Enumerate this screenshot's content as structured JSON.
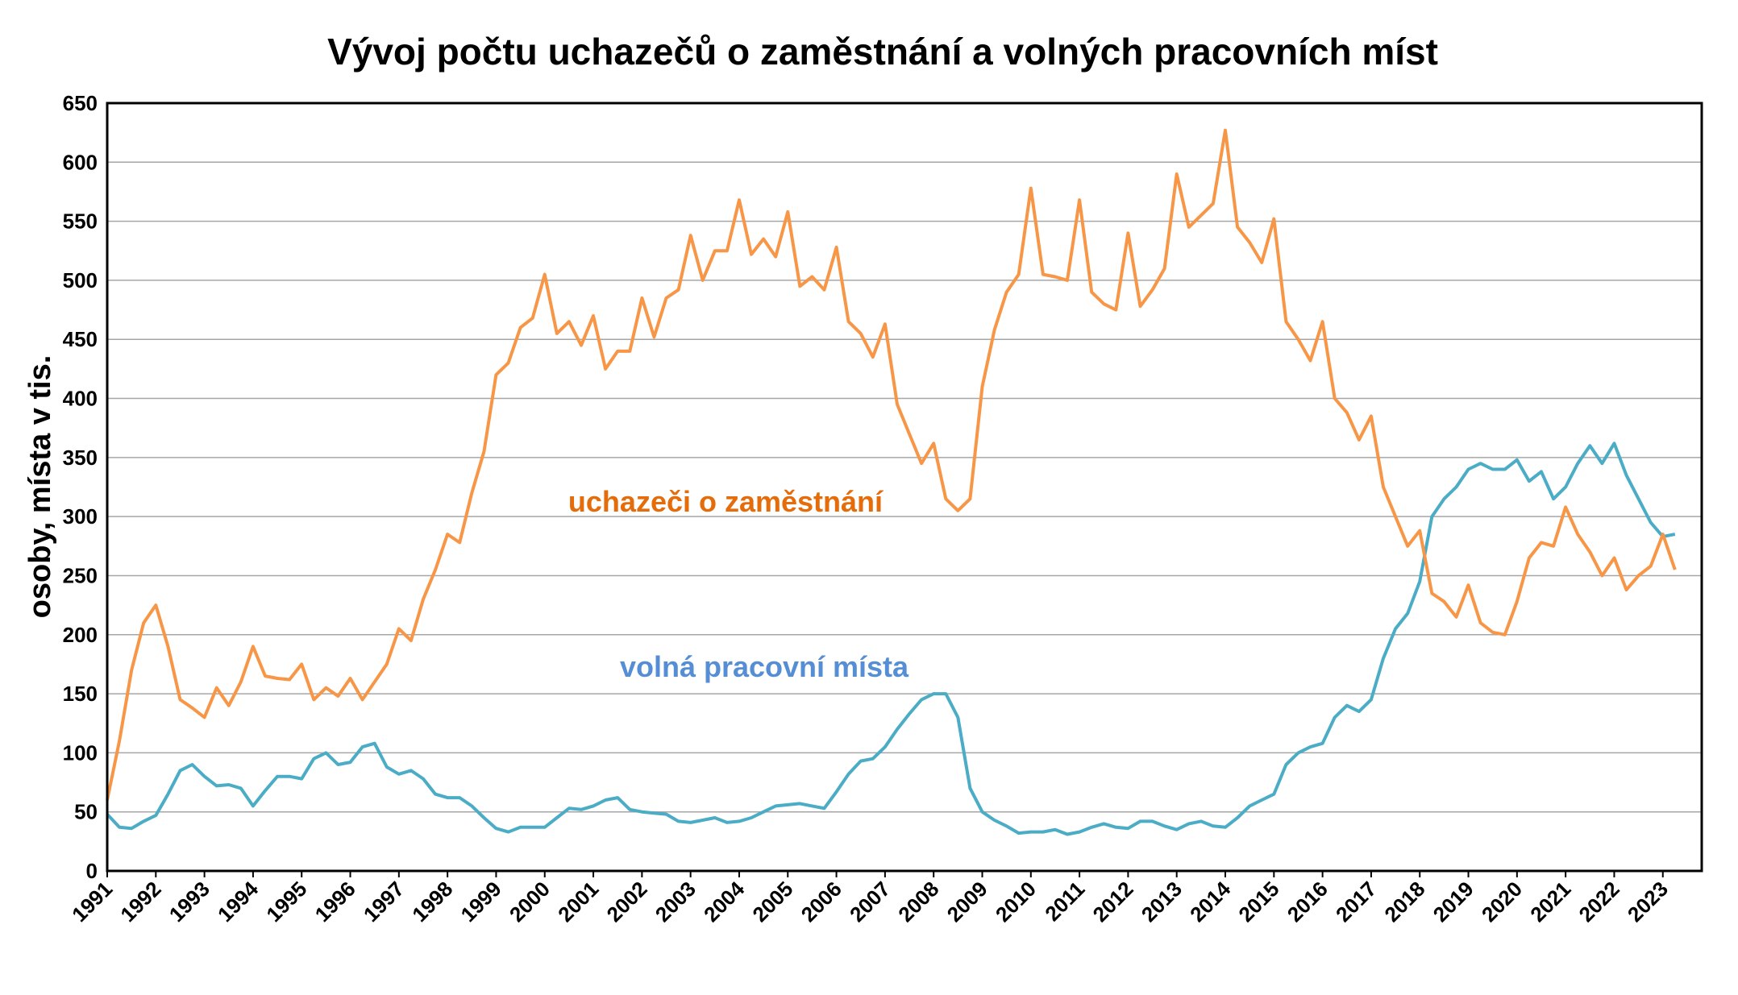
{
  "chart_data": {
    "type": "line",
    "title": "Vývoj počtu uchazečů o zaměstnání a volných pracovních míst",
    "y_label": "osoby, místa v tis.",
    "annotations": [
      "uchazeči o zaměstnání",
      "volná pracovní místa"
    ],
    "x": [
      1991,
      1991.25,
      1991.5,
      1991.75,
      1992,
      1992.25,
      1992.5,
      1992.75,
      1993,
      1993.25,
      1993.5,
      1993.75,
      1994,
      1994.25,
      1994.5,
      1994.75,
      1995,
      1995.25,
      1995.5,
      1995.75,
      1996,
      1996.25,
      1996.5,
      1996.75,
      1997,
      1997.25,
      1997.5,
      1997.75,
      1998,
      1998.25,
      1998.5,
      1998.75,
      1999,
      1999.25,
      1999.5,
      1999.75,
      2000,
      2000.25,
      2000.5,
      2000.75,
      2001,
      2001.25,
      2001.5,
      2001.75,
      2002,
      2002.25,
      2002.5,
      2002.75,
      2003,
      2003.25,
      2003.5,
      2003.75,
      2004,
      2004.25,
      2004.5,
      2004.75,
      2005,
      2005.25,
      2005.5,
      2005.75,
      2006,
      2006.25,
      2006.5,
      2006.75,
      2007,
      2007.25,
      2007.5,
      2007.75,
      2008,
      2008.25,
      2008.5,
      2008.75,
      2009,
      2009.25,
      2009.5,
      2009.75,
      2010,
      2010.25,
      2010.5,
      2010.75,
      2011,
      2011.25,
      2011.5,
      2011.75,
      2012,
      2012.25,
      2012.5,
      2012.75,
      2013,
      2013.25,
      2013.5,
      2013.75,
      2014,
      2014.25,
      2014.5,
      2014.75,
      2015,
      2015.25,
      2015.5,
      2015.75,
      2016,
      2016.25,
      2016.5,
      2016.75,
      2017,
      2017.25,
      2017.5,
      2017.75,
      2018,
      2018.25,
      2018.5,
      2018.75,
      2019,
      2019.25,
      2019.5,
      2019.75,
      2020,
      2020.25,
      2020.5,
      2020.75,
      2021,
      2021.25,
      2021.5,
      2021.75,
      2022,
      2022.25,
      2022.5,
      2022.75,
      2023,
      2023.25
    ],
    "series": [
      {
        "name": "uchazeči o zaměstnání",
        "color": "#f79646",
        "values": [
          60,
          110,
          170,
          210,
          225,
          190,
          145,
          138,
          130,
          155,
          140,
          160,
          190,
          165,
          163,
          162,
          175,
          145,
          155,
          148,
          163,
          145,
          160,
          175,
          205,
          195,
          230,
          255,
          285,
          278,
          320,
          355,
          420,
          430,
          460,
          468,
          505,
          455,
          465,
          445,
          470,
          425,
          440,
          440,
          485,
          452,
          485,
          492,
          538,
          500,
          525,
          525,
          568,
          522,
          535,
          520,
          558,
          495,
          503,
          492,
          528,
          465,
          455,
          435,
          463,
          395,
          370,
          345,
          362,
          315,
          305,
          315,
          410,
          458,
          490,
          505,
          578,
          505,
          503,
          500,
          568,
          490,
          480,
          475,
          540,
          478,
          492,
          510,
          590,
          545,
          555,
          565,
          627,
          545,
          532,
          515,
          552,
          465,
          450,
          432,
          465,
          400,
          388,
          365,
          385,
          325,
          300,
          275,
          288,
          235,
          228,
          215,
          242,
          210,
          202,
          200,
          228,
          265,
          278,
          275,
          308,
          285,
          270,
          250,
          265,
          238,
          250,
          258,
          285,
          255
        ]
      },
      {
        "name": "volná pracovní místa",
        "color": "#4bacc6",
        "values": [
          48,
          37,
          36,
          42,
          47,
          65,
          85,
          90,
          80,
          72,
          73,
          70,
          55,
          68,
          80,
          80,
          78,
          95,
          100,
          90,
          92,
          105,
          108,
          88,
          82,
          85,
          78,
          65,
          62,
          62,
          55,
          45,
          36,
          33,
          37,
          37,
          37,
          45,
          53,
          52,
          55,
          60,
          62,
          52,
          50,
          49,
          48,
          42,
          41,
          43,
          45,
          41,
          42,
          45,
          50,
          55,
          56,
          57,
          55,
          53,
          67,
          82,
          93,
          95,
          105,
          120,
          133,
          145,
          150,
          150,
          130,
          70,
          50,
          43,
          38,
          32,
          33,
          33,
          35,
          31,
          33,
          37,
          40,
          37,
          36,
          42,
          42,
          38,
          35,
          40,
          42,
          38,
          37,
          45,
          55,
          60,
          65,
          90,
          100,
          105,
          108,
          130,
          140,
          135,
          145,
          180,
          205,
          218,
          245,
          300,
          315,
          325,
          340,
          345,
          340,
          340,
          348,
          330,
          338,
          315,
          325,
          345,
          360,
          345,
          362,
          335,
          315,
          295,
          283,
          285
        ]
      }
    ],
    "xlim": [
      1991,
      2023.8
    ],
    "xticks": [
      1991,
      1992,
      1993,
      1994,
      1995,
      1996,
      1997,
      1998,
      1999,
      2000,
      2001,
      2002,
      2003,
      2004,
      2005,
      2006,
      2007,
      2008,
      2009,
      2010,
      2011,
      2012,
      2013,
      2014,
      2015,
      2016,
      2017,
      2018,
      2019,
      2020,
      2021,
      2022,
      2023
    ],
    "ylim": [
      0,
      650
    ],
    "yticks": [
      0,
      50,
      100,
      150,
      200,
      250,
      300,
      350,
      400,
      450,
      500,
      550,
      600,
      650
    ],
    "grid": true,
    "legend": false
  }
}
